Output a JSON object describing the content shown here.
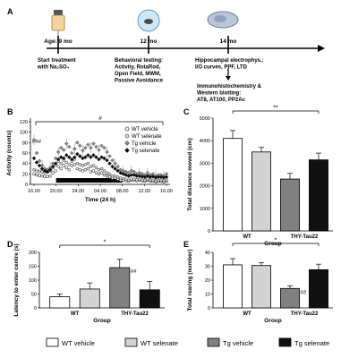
{
  "panel_a": {
    "letter": "A",
    "stages": [
      {
        "age": "Age: 9 mo",
        "lines": [
          "Start treatment",
          "with Na₂SO₄"
        ]
      },
      {
        "age": "12 mo",
        "lines": [
          "Behavioral testing:",
          "Activity, RotaRod,",
          "Open Field, MWM,",
          "Passive Avoidance"
        ]
      },
      {
        "age": "14 mo",
        "lines": [
          "Hippocampal electrophys.:",
          "I/O curves, PPF, LTD"
        ]
      }
    ],
    "followup": [
      "Immunohistochemistry &",
      "Western blotting:",
      "AT8, AT100, PP2Ac"
    ]
  },
  "chart_data": [
    {
      "panel": "B",
      "type": "scatter",
      "ylabel": "Activity (counts)",
      "xlabel": "Time (24 h)",
      "x_ticks": [
        "16.00",
        "20.00",
        "24.00",
        "04.00",
        "08.00",
        "12.00",
        "16.00"
      ],
      "y_ticks": [
        0,
        20,
        40,
        60,
        80,
        100,
        120
      ],
      "ylim": [
        0,
        120
      ],
      "dark_phase_label": "20.00–08.00",
      "annotations": {
        "hash_top": "#",
        "hash_left": "###"
      },
      "legend": [
        "WT vehicle",
        "WT selenate",
        "Tg vehicle",
        "Tg selenate"
      ],
      "legend_placement": "top-right",
      "series": [
        {
          "name": "WT vehicle",
          "marker": "open-circle",
          "values": [
            20,
            18,
            17,
            16,
            15,
            15,
            16,
            22,
            26,
            34,
            30,
            36,
            32,
            28,
            36,
            38,
            30,
            28,
            26,
            28,
            30,
            24,
            26,
            22,
            20,
            22,
            18,
            16,
            14,
            12,
            12,
            10,
            8,
            8,
            7,
            6,
            8,
            8,
            7,
            8,
            7,
            6,
            8,
            6,
            6,
            5,
            6,
            6,
            5,
            6
          ]
        },
        {
          "name": "WT selenate",
          "marker": "open-circle-gray",
          "values": [
            28,
            26,
            25,
            24,
            22,
            24,
            26,
            32,
            38,
            44,
            40,
            46,
            42,
            38,
            44,
            48,
            40,
            38,
            36,
            38,
            40,
            34,
            36,
            32,
            28,
            30,
            26,
            22,
            20,
            16,
            16,
            14,
            12,
            11,
            10,
            8,
            10,
            10,
            9,
            10,
            9,
            8,
            10,
            8,
            8,
            7,
            8,
            8,
            7,
            8
          ]
        },
        {
          "name": "Tg vehicle",
          "marker": "diamond-gray",
          "values": [
            85,
            60,
            45,
            36,
            30,
            28,
            32,
            40,
            50,
            62,
            70,
            66,
            78,
            72,
            60,
            68,
            80,
            74,
            65,
            70,
            76,
            70,
            78,
            72,
            66,
            74,
            70,
            62,
            54,
            46,
            40,
            34,
            28,
            26,
            24,
            22,
            26,
            24,
            20,
            22,
            20,
            18,
            22,
            18,
            20,
            16,
            18,
            18,
            16,
            20
          ]
        },
        {
          "name": "Tg selenate",
          "marker": "diamond-black",
          "values": [
            50,
            42,
            36,
            30,
            26,
            24,
            28,
            34,
            40,
            48,
            52,
            50,
            56,
            52,
            48,
            52,
            58,
            54,
            50,
            52,
            56,
            52,
            56,
            52,
            48,
            52,
            50,
            46,
            40,
            34,
            30,
            26,
            22,
            20,
            18,
            16,
            18,
            18,
            16,
            16,
            15,
            14,
            16,
            14,
            15,
            13,
            14,
            14,
            13,
            14
          ]
        }
      ]
    },
    {
      "panel": "C",
      "type": "bar",
      "ylabel": "Total distance moved (cm)",
      "xlabel": "Group",
      "group_labels": [
        "WT",
        "THY-Tau22"
      ],
      "categories": [
        "WT vehicle",
        "WT selenate",
        "Tg vehicle",
        "Tg selenate"
      ],
      "values": [
        4100,
        3500,
        2300,
        3150
      ],
      "errors": [
        350,
        200,
        250,
        300
      ],
      "colors": [
        "#ffffff",
        "#d3d3d3",
        "#808080",
        "#111111"
      ],
      "ylim": [
        0,
        5000
      ],
      "y_ticks": [
        0,
        1000,
        2000,
        3000,
        4000,
        5000
      ],
      "significance": "**",
      "annotations": []
    },
    {
      "panel": "D",
      "type": "bar",
      "ylabel": "Latency to enter centre (s)",
      "xlabel": "Group",
      "group_labels": [
        "WT",
        "THY-Tau22"
      ],
      "categories": [
        "WT vehicle",
        "WT selenate",
        "Tg vehicle",
        "Tg selenate"
      ],
      "values": [
        40,
        68,
        145,
        65
      ],
      "errors": [
        10,
        22,
        30,
        30
      ],
      "colors": [
        "#ffffff",
        "#d3d3d3",
        "#808080",
        "#111111"
      ],
      "ylim": [
        0,
        200
      ],
      "y_ticks": [
        0,
        50,
        100,
        150,
        200
      ],
      "significance": "*",
      "annotations": [
        {
          "bar": 2,
          "text": "##"
        }
      ]
    },
    {
      "panel": "E",
      "type": "bar",
      "ylabel": "Total rearing (number)",
      "xlabel": "Group",
      "group_labels": [
        "WT",
        "THY-Tau22"
      ],
      "categories": [
        "WT vehicle",
        "WT selenate",
        "Tg vehicle",
        "Tg selenate"
      ],
      "values": [
        31,
        30.5,
        14,
        27.5
      ],
      "errors": [
        4.5,
        2,
        2,
        4
      ],
      "colors": [
        "#ffffff",
        "#d3d3d3",
        "#808080",
        "#111111"
      ],
      "ylim": [
        0,
        40
      ],
      "y_ticks": [
        0,
        10,
        20,
        30,
        40
      ],
      "significance": "*",
      "annotations": [
        {
          "bar": 2,
          "text": "##"
        }
      ]
    }
  ],
  "legend": {
    "items": [
      {
        "label": "WT vehicle",
        "color": "#ffffff"
      },
      {
        "label": "WT selenate",
        "color": "#d3d3d3"
      },
      {
        "label": "Tg vehicle",
        "color": "#808080"
      },
      {
        "label": "Tg selenate",
        "color": "#111111"
      }
    ]
  }
}
